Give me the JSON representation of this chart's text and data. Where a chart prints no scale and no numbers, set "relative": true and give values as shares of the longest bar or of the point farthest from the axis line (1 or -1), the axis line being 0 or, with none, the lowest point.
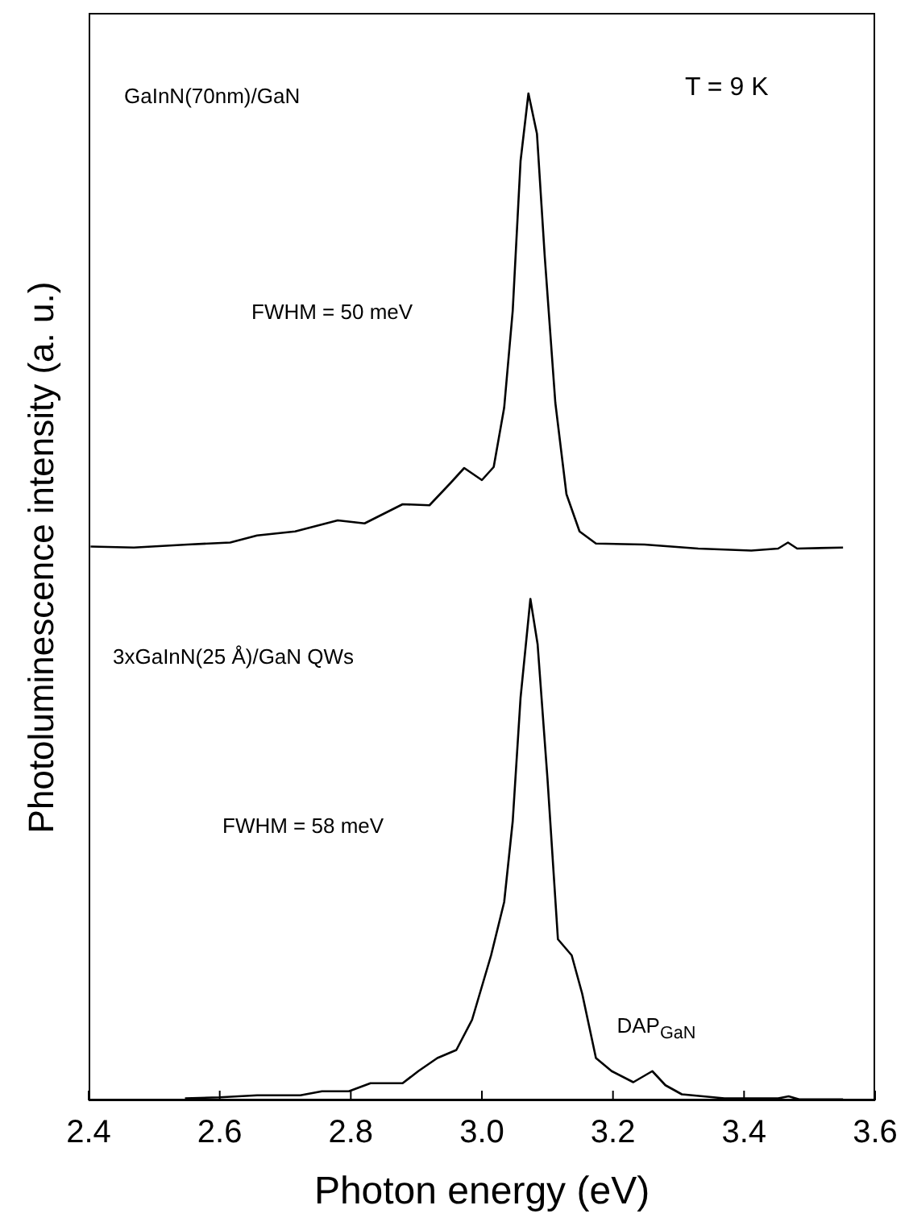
{
  "chart_data": {
    "type": "line",
    "relative": true,
    "xlabel": "Photon energy (eV)",
    "ylabel": "Photoluminescence intensity (a. u.)",
    "xlim": [
      2.4,
      3.6
    ],
    "xticks": [
      2.4,
      2.6,
      2.8,
      {
        "value": 3,
        "label": "3.0"
      },
      3.2,
      3.4,
      {
        "value": 3.6,
        "label": "3.6"
      }
    ],
    "tick_labels": "x",
    "marker": "none",
    "line_style": "solid",
    "annotations": [
      "GaInN(70nm)/GaN",
      "T = 9 K",
      "FWHM = 50 meV",
      "3xGaInN(25 Å)/GaN QWs",
      "FWHM = 58 meV",
      {
        "text": "DAP$_{GaN}$",
        "x": 3.26,
        "y": 0.029
      }
    ],
    "series": [
      {
        "color": "#000000",
        "x": [
          2.403,
          2.469,
          2.551,
          2.616,
          2.657,
          2.715,
          2.78,
          2.821,
          2.879,
          2.92,
          2.952,
          2.973,
          3.0,
          3.018,
          3.034,
          3.047,
          3.059,
          3.071,
          3.084,
          3.096,
          3.112,
          3.129,
          3.149,
          3.174,
          3.248,
          3.33,
          3.411,
          3.452,
          3.467,
          3.481,
          3.551
        ],
        "values": [
          0.55,
          0.549,
          0.552,
          0.554,
          0.561,
          0.565,
          0.576,
          0.573,
          0.592,
          0.591,
          0.613,
          0.628,
          0.616,
          0.629,
          0.688,
          0.784,
          0.933,
          1,
          0.96,
          0.837,
          0.693,
          0.602,
          0.565,
          0.553,
          0.552,
          0.548,
          0.546,
          0.548,
          0.554,
          0.548,
          0.549
        ]
      },
      {
        "color": "#000000",
        "x": [
          2.547,
          2.6,
          2.657,
          2.723,
          2.756,
          2.797,
          2.83,
          2.879,
          2.903,
          2.932,
          2.961,
          2.985,
          3.014,
          3.034,
          3.047,
          3.059,
          3.074,
          3.085,
          3.1,
          3.116,
          3.137,
          3.153,
          3.174,
          3.198,
          3.231,
          3.26,
          3.28,
          3.305,
          3.37,
          3.452,
          3.468,
          3.484,
          3.551
        ],
        "values": [
          0.002,
          0.003,
          0.005,
          0.005,
          0.009,
          0.009,
          0.017,
          0.017,
          0.029,
          0.042,
          0.05,
          0.08,
          0.144,
          0.197,
          0.277,
          0.4,
          0.498,
          0.453,
          0.32,
          0.16,
          0.144,
          0.106,
          0.042,
          0.029,
          0.018,
          0.029,
          0.015,
          0.006,
          0.002,
          0.002,
          0.004,
          0.001,
          0.001
        ]
      }
    ]
  }
}
